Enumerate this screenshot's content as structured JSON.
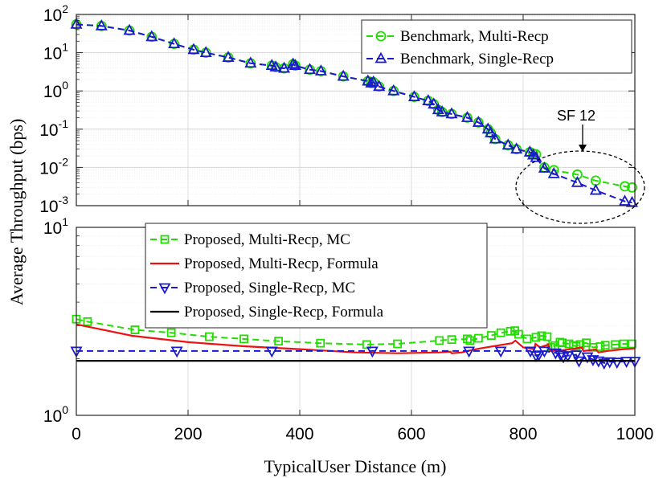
{
  "chart_data": [
    {
      "type": "line",
      "panel": "top",
      "xlabel": "TypicalUser Distance (m)",
      "ylabel": "Average Throughput (bps)",
      "xlim": [
        0,
        1000
      ],
      "ylim": [
        0.001,
        100
      ],
      "yscale": "log",
      "grid": true,
      "legend_position": "top-right",
      "x_ticks": [
        "0",
        "200",
        "400",
        "600",
        "800",
        "1000"
      ],
      "y_ticks": [
        {
          "base": "10",
          "exp": "2"
        },
        {
          "base": "10",
          "exp": "1"
        },
        {
          "base": "10",
          "exp": "0"
        },
        {
          "base": "10",
          "exp": "-1"
        },
        {
          "base": "10",
          "exp": "-2"
        },
        {
          "base": "10",
          "exp": "-3"
        }
      ],
      "annotations": [
        {
          "text": "SF 12",
          "x": 890,
          "y": 0.01,
          "shape": "ellipse-around-region"
        }
      ],
      "series": [
        {
          "name": "Benchmark, Multi-Recp",
          "color": "#22dd00",
          "style": "dashed",
          "marker": "circle",
          "x": [
            0,
            45,
            95,
            135,
            175,
            210,
            232,
            272,
            312,
            350,
            357,
            372,
            388,
            392,
            418,
            438,
            478,
            522,
            528,
            532,
            542,
            568,
            605,
            630,
            640,
            648,
            655,
            672,
            700,
            720,
            737,
            742,
            750,
            773,
            788,
            812,
            818,
            823,
            838,
            855,
            897,
            930,
            982,
            995
          ],
          "y": [
            55,
            50,
            38,
            26,
            17,
            12,
            10,
            7.5,
            5.3,
            4.6,
            4.2,
            3.9,
            5.0,
            4.6,
            3.6,
            3.3,
            2.4,
            1.8,
            1.6,
            1.7,
            1.3,
            1.0,
            0.7,
            0.55,
            0.45,
            0.32,
            0.28,
            0.25,
            0.2,
            0.15,
            0.1,
            0.08,
            0.055,
            0.038,
            0.03,
            0.025,
            0.023,
            0.022,
            0.01,
            0.0085,
            0.0065,
            0.0045,
            0.0032,
            0.003
          ]
        },
        {
          "name": "Benchmark, Single-Recp",
          "color": "#1a1acc",
          "style": "dashed",
          "marker": "triangle-up",
          "x": [
            0,
            45,
            95,
            135,
            175,
            210,
            232,
            272,
            312,
            350,
            357,
            372,
            388,
            392,
            418,
            438,
            478,
            522,
            528,
            532,
            542,
            568,
            605,
            630,
            640,
            648,
            655,
            672,
            700,
            720,
            737,
            742,
            750,
            773,
            788,
            812,
            818,
            823,
            838,
            855,
            897,
            930,
            982,
            995
          ],
          "y": [
            55,
            50,
            38,
            26,
            17,
            12,
            10,
            7.5,
            5.3,
            4.6,
            4.2,
            3.9,
            5.0,
            4.6,
            3.6,
            3.3,
            2.4,
            1.8,
            1.6,
            1.7,
            1.3,
            1.0,
            0.7,
            0.55,
            0.45,
            0.32,
            0.28,
            0.25,
            0.2,
            0.15,
            0.1,
            0.08,
            0.055,
            0.038,
            0.03,
            0.025,
            0.021,
            0.018,
            0.0095,
            0.0068,
            0.004,
            0.0025,
            0.0013,
            0.0012
          ]
        }
      ]
    },
    {
      "type": "line",
      "panel": "bottom",
      "xlabel": "TypicalUser Distance (m)",
      "ylabel": "Average Throughput (bps)",
      "xlim": [
        0,
        1000
      ],
      "ylim": [
        1,
        10
      ],
      "yscale": "log",
      "grid": true,
      "legend_position": "top-center",
      "x_ticks": [
        "0",
        "200",
        "400",
        "600",
        "800",
        "1000"
      ],
      "y_ticks": [
        {
          "base": "10",
          "exp": "1"
        },
        {
          "base": "10",
          "exp": "0"
        }
      ],
      "series": [
        {
          "name": "Proposed, Multi-Recp, MC",
          "color": "#22dd00",
          "style": "dashed",
          "marker": "square",
          "x": [
            0,
            20,
            105,
            170,
            238,
            300,
            362,
            437,
            520,
            575,
            650,
            672,
            700,
            705,
            720,
            743,
            760,
            777,
            785,
            792,
            807,
            823,
            833,
            843,
            850,
            857,
            866,
            870,
            882,
            890,
            895,
            902,
            913,
            925,
            938,
            947,
            965,
            980,
            995
          ],
          "y": [
            3.25,
            3.15,
            2.85,
            2.75,
            2.62,
            2.55,
            2.48,
            2.42,
            2.38,
            2.4,
            2.5,
            2.53,
            2.55,
            2.5,
            2.57,
            2.66,
            2.75,
            2.8,
            2.82,
            2.7,
            2.55,
            2.6,
            2.65,
            2.62,
            2.3,
            2.35,
            2.45,
            2.43,
            2.4,
            2.35,
            2.33,
            2.38,
            2.43,
            2.3,
            2.32,
            2.36,
            2.38,
            2.4,
            2.4
          ]
        },
        {
          "name": "Proposed, Multi-Recp, Formula",
          "color": "#ee1111",
          "style": "solid",
          "marker": "none",
          "x": [
            0,
            100,
            200,
            300,
            400,
            500,
            575,
            650,
            670,
            672,
            690,
            700,
            720,
            750,
            780,
            786,
            800,
            820,
            822,
            830,
            845,
            848,
            870,
            890,
            905,
            908,
            930,
            935,
            950,
            975,
            1000
          ],
          "y": [
            3.05,
            2.65,
            2.45,
            2.33,
            2.25,
            2.16,
            2.14,
            2.16,
            2.18,
            2.14,
            2.16,
            2.2,
            2.26,
            2.34,
            2.42,
            2.5,
            2.3,
            2.25,
            2.4,
            2.3,
            2.38,
            2.2,
            2.22,
            2.26,
            2.3,
            2.2,
            2.24,
            2.16,
            2.2,
            2.24,
            2.27
          ]
        },
        {
          "name": "Proposed, Single-Recp, MC",
          "color": "#1a1acc",
          "style": "dashed",
          "marker": "triangle-down",
          "x": [
            0,
            180,
            350,
            530,
            703,
            760,
            813,
            823,
            828,
            838,
            858,
            867,
            872,
            880,
            895,
            900,
            915,
            925,
            935,
            945,
            955,
            968,
            985,
            1000
          ],
          "y": [
            2.2,
            2.2,
            2.2,
            2.2,
            2.2,
            2.2,
            2.2,
            2.08,
            2.1,
            2.2,
            2.15,
            2.1,
            2.05,
            2.08,
            2.1,
            1.95,
            2.05,
            1.98,
            1.95,
            1.9,
            1.93,
            1.92,
            1.94,
            1.94
          ]
        },
        {
          "name": "Proposed, Single-Recp, Formula",
          "color": "#000000",
          "style": "solid",
          "marker": "none",
          "x": [
            0,
            1000
          ],
          "y": [
            1.95,
            1.95
          ]
        }
      ]
    }
  ]
}
